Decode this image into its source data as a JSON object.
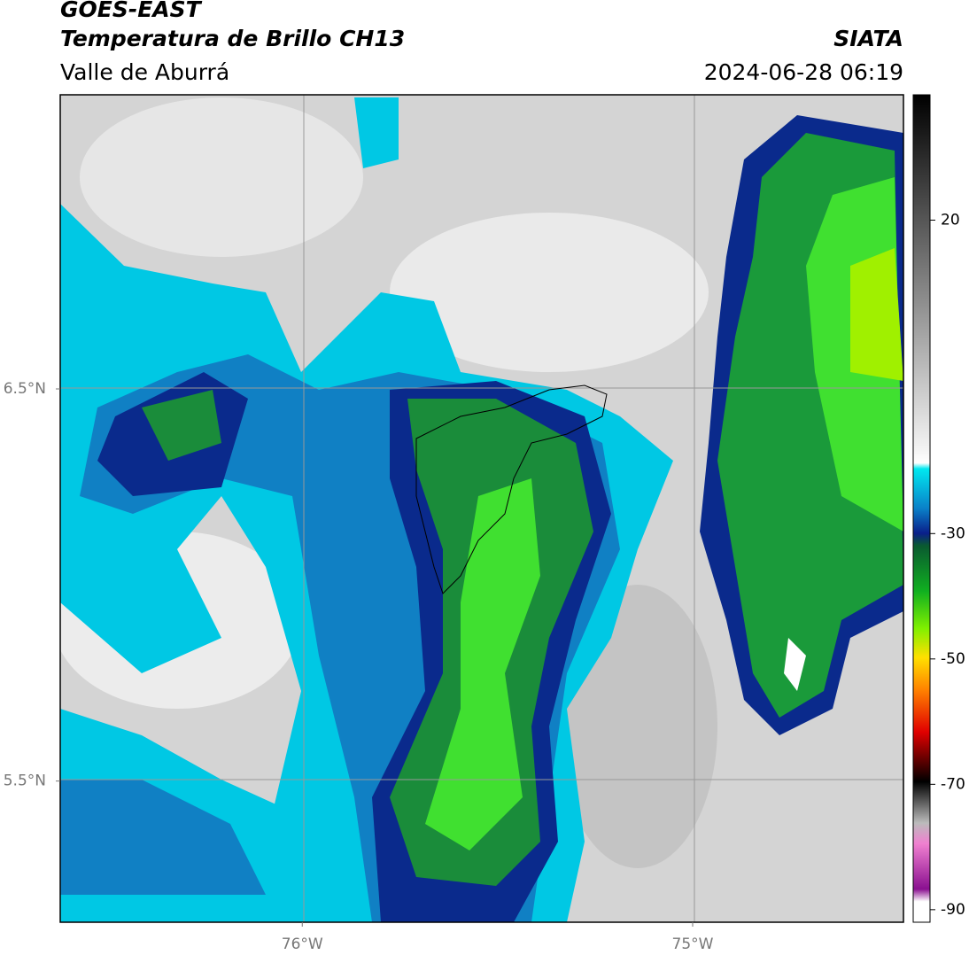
{
  "header": {
    "title": "GOES-EAST",
    "subtitle": "Temperatura de Brillo CH13",
    "region": "Valle de Aburrá",
    "source": "SIATA",
    "datetime": "2024-06-28 06:19"
  },
  "map": {
    "xlim": [
      -76.62,
      -74.46
    ],
    "ylim": [
      5.14,
      7.25
    ],
    "xticks": [
      {
        "value": -76,
        "label": "76°W"
      },
      {
        "value": -75,
        "label": "75°W"
      }
    ],
    "yticks": [
      {
        "value": 6.5,
        "label": "6.5°N"
      },
      {
        "value": 5.5,
        "label": "5.5°N"
      }
    ]
  },
  "colorbar": {
    "range": [
      -92,
      40
    ],
    "ticks": [
      20,
      -30,
      -50,
      -70,
      -90
    ]
  }
}
